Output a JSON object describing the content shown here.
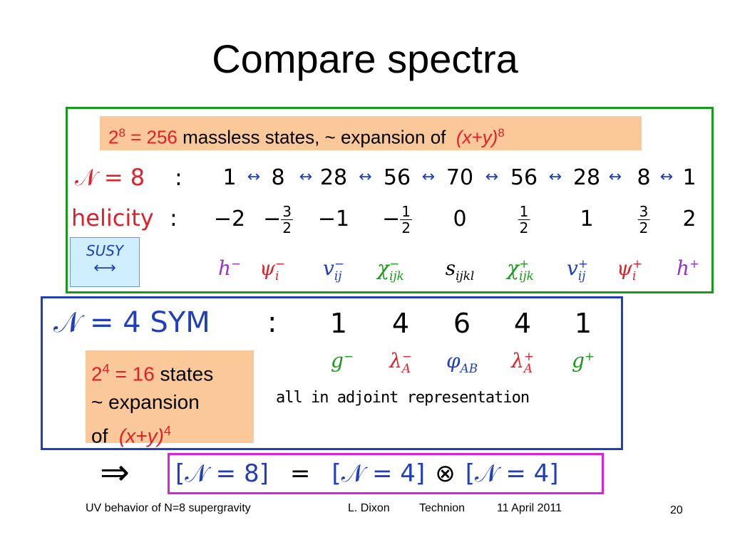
{
  "title": "Compare spectra",
  "n8_box": {
    "note": {
      "base": "2",
      "exp": "8",
      "eq": "= 256",
      "text": "massless states, ~ expansion of",
      "expr": "(x+y)",
      "expr_exp": "8"
    },
    "multiplicity": {
      "label": "𝒩 = 8",
      "colon": ":",
      "values": [
        1,
        8,
        28,
        56,
        70,
        56,
        28,
        8,
        1
      ]
    },
    "helicity": {
      "label": "helicity",
      "colon": ":",
      "values": [
        "−2",
        {
          "sign": "−",
          "num": "3",
          "den": "2"
        },
        "−1",
        {
          "sign": "−",
          "num": "1",
          "den": "2"
        },
        "0",
        {
          "num": "1",
          "den": "2"
        },
        "1",
        {
          "num": "3",
          "den": "2"
        },
        "2"
      ]
    },
    "susy": "SUSY",
    "fields": [
      {
        "sym": "h",
        "sup": "−",
        "color": "#9b30d0"
      },
      {
        "sym": "ψ",
        "sub": "i",
        "sup": "−",
        "color": "#e0202a"
      },
      {
        "sym": "v",
        "sub": "ij",
        "sup": "−",
        "color": "#1f3fbf"
      },
      {
        "sym": "χ",
        "sub": "ijk",
        "sup": "−",
        "color": "#1a9a1a"
      },
      {
        "sym": "s",
        "sub": "ijkl",
        "color": "#000000"
      },
      {
        "sym": "χ",
        "sub": "ijk",
        "sup": "+",
        "color": "#1a9a1a"
      },
      {
        "sym": "v",
        "sub": "ij",
        "sup": "+",
        "color": "#1f3fbf"
      },
      {
        "sym": "ψ",
        "sub": "i",
        "sup": "+",
        "color": "#e0202a"
      },
      {
        "sym": "h",
        "sup": "+",
        "color": "#9b30d0"
      }
    ]
  },
  "n4_box": {
    "label": "𝒩 = 4 SYM",
    "colon": ":",
    "values": [
      1,
      4,
      6,
      4,
      1
    ],
    "fields": [
      {
        "sym": "g",
        "sup": "−",
        "color": "#1a9a1a"
      },
      {
        "sym": "λ",
        "sub": "A",
        "sup": "−",
        "color": "#e0202a"
      },
      {
        "sym": "φ",
        "sub": "AB",
        "color": "#1f3fbf"
      },
      {
        "sym": "λ",
        "sub": "A",
        "sup": "+",
        "color": "#e0202a"
      },
      {
        "sym": "g",
        "sup": "+",
        "color": "#1a9a1a"
      }
    ],
    "note": {
      "base": "2",
      "exp": "4",
      "eq": "= 16",
      "text1": "states",
      "text2": "~ expansion",
      "text3": "of",
      "expr": "(x+y)",
      "expr_exp": "4"
    },
    "adjoint": "all in adjoint representation"
  },
  "relation": {
    "implies": "⇒",
    "lhs": "[𝒩 = 8]",
    "eq": "=",
    "factor1": "[𝒩 = 4]",
    "times": "⊗",
    "factor2": "[𝒩 = 4]"
  },
  "footer": {
    "talk": "UV behavior of N=8 supergravity",
    "author": "L. Dixon",
    "venue": "Technion",
    "date": "11 April 2011",
    "page": "20"
  }
}
